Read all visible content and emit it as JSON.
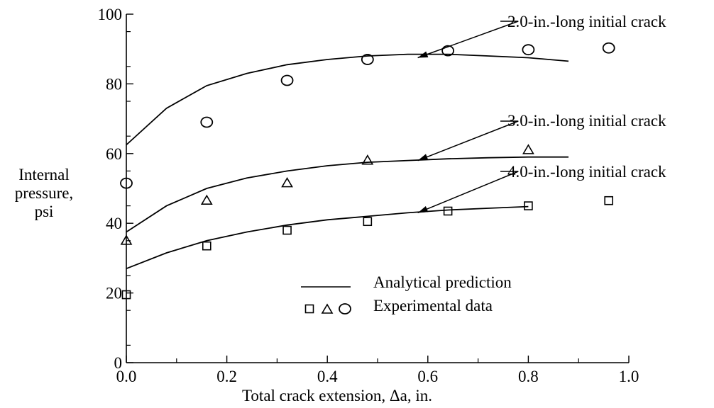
{
  "chart_data": {
    "type": "line",
    "title": "",
    "xlabel": "Total crack extension, Δa, in.",
    "ylabel": [
      "Internal",
      "pressure,",
      "psi"
    ],
    "xlim": [
      0.0,
      1.0
    ],
    "ylim": [
      0,
      100
    ],
    "xticks": [
      0.0,
      0.2,
      0.4,
      0.6,
      0.8,
      1.0
    ],
    "xtick_labels": [
      "0.0",
      "0.2",
      "0.4",
      "0.6",
      "0.8",
      "1.0"
    ],
    "yticks": [
      0,
      20,
      40,
      60,
      80,
      100
    ],
    "ytick_labels": [
      "0",
      "20",
      "40",
      "60",
      "80",
      "100"
    ],
    "grid": false,
    "annotations": [
      "2.0-in.-long initial crack",
      "3.0-in.-long initial crack",
      "4.0-in.-long initial crack"
    ],
    "legend": {
      "placement": "lower-right",
      "entries": [
        {
          "label": "Analytical prediction",
          "symbol": "line"
        },
        {
          "label": "Experimental data",
          "symbol": "square-triangle-circle"
        }
      ]
    },
    "series": [
      {
        "kind": "analytical",
        "style": "line",
        "x": [
          0.0,
          0.08,
          0.16,
          0.24,
          0.32,
          0.4,
          0.48,
          0.56,
          0.64,
          0.72,
          0.8,
          0.88
        ],
        "y": [
          62.5,
          73.0,
          79.5,
          83.0,
          85.5,
          87.0,
          88.0,
          88.5,
          88.5,
          88.0,
          87.5,
          86.5
        ]
      },
      {
        "kind": "experimental",
        "marker": "circle",
        "x": [
          0.0,
          0.16,
          0.32,
          0.48,
          0.64,
          0.8,
          0.96
        ],
        "y": [
          51.5,
          69.0,
          81.0,
          87.0,
          89.5,
          89.8,
          90.3
        ]
      },
      {
        "kind": "analytical",
        "style": "line",
        "x": [
          0.0,
          0.08,
          0.16,
          0.24,
          0.32,
          0.4,
          0.48,
          0.56,
          0.64,
          0.72,
          0.8,
          0.88
        ],
        "y": [
          37.5,
          45.0,
          50.0,
          53.0,
          55.0,
          56.5,
          57.5,
          58.0,
          58.5,
          58.8,
          59.0,
          59.0
        ]
      },
      {
        "kind": "experimental",
        "marker": "triangle",
        "x": [
          0.0,
          0.16,
          0.32,
          0.48,
          0.8
        ],
        "y": [
          35.0,
          46.5,
          51.5,
          58.0,
          61.0
        ]
      },
      {
        "kind": "analytical",
        "style": "line",
        "x": [
          0.0,
          0.08,
          0.16,
          0.24,
          0.32,
          0.4,
          0.48,
          0.56,
          0.64,
          0.72,
          0.8
        ],
        "y": [
          27.0,
          31.5,
          35.0,
          37.5,
          39.5,
          41.0,
          42.0,
          43.0,
          43.8,
          44.3,
          44.8
        ]
      },
      {
        "kind": "experimental",
        "marker": "square",
        "x": [
          0.0,
          0.16,
          0.32,
          0.48,
          0.64,
          0.8,
          0.96
        ],
        "y": [
          19.5,
          33.5,
          38.0,
          40.5,
          43.5,
          45.0,
          46.5
        ]
      }
    ]
  }
}
